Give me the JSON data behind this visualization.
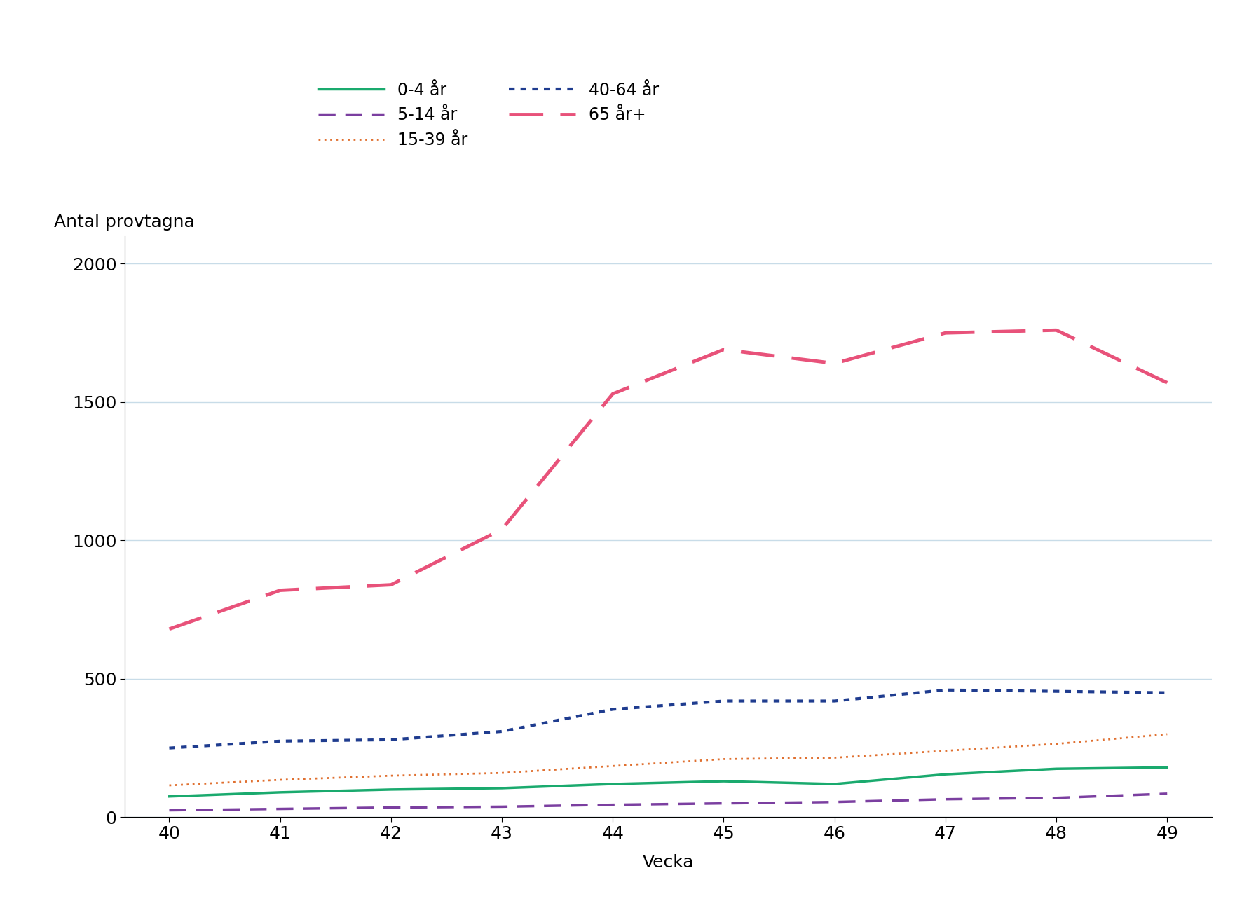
{
  "weeks": [
    40,
    41,
    42,
    43,
    44,
    45,
    46,
    47,
    48,
    49
  ],
  "series_order": [
    "0-4 år",
    "5-14 år",
    "15-39 år",
    "40-64 år",
    "65 år+"
  ],
  "series": {
    "0-4 år": {
      "values": [
        75,
        90,
        100,
        105,
        120,
        130,
        120,
        155,
        175,
        180
      ],
      "color": "#1aaa6e",
      "linestyle": "solid",
      "linewidth": 2.5,
      "dashes": null
    },
    "5-14 år": {
      "values": [
        25,
        30,
        35,
        38,
        45,
        50,
        55,
        65,
        70,
        85
      ],
      "color": "#7b3fa0",
      "linestyle": "dashed",
      "linewidth": 2.5,
      "dashes": [
        7,
        4
      ]
    },
    "15-39 år": {
      "values": [
        115,
        135,
        150,
        160,
        185,
        210,
        215,
        240,
        265,
        300
      ],
      "color": "#e07030",
      "linestyle": "dotted",
      "linewidth": 2.0,
      "dashes": [
        1,
        2
      ]
    },
    "40-64 år": {
      "values": [
        250,
        275,
        280,
        310,
        390,
        420,
        420,
        460,
        455,
        450
      ],
      "color": "#1f3c8f",
      "linestyle": "dotted",
      "linewidth": 3.0,
      "dashes": [
        2,
        2
      ]
    },
    "65 år+": {
      "values": [
        680,
        820,
        840,
        1040,
        1530,
        1690,
        1640,
        1750,
        1760,
        1570
      ],
      "color": "#e8527a",
      "linestyle": "dashed",
      "linewidth": 3.5,
      "dashes": [
        10,
        5
      ]
    }
  },
  "xlabel": "Vecka",
  "ylabel": "Antal provtagna",
  "ylim": [
    0,
    2100
  ],
  "yticks": [
    0,
    500,
    1000,
    1500,
    2000
  ],
  "xlim": [
    39.6,
    49.4
  ],
  "xticks": [
    40,
    41,
    42,
    43,
    44,
    45,
    46,
    47,
    48,
    49
  ],
  "grid_color": "#c8dce8",
  "background_color": "#ffffff",
  "label_fontsize": 18,
  "tick_fontsize": 18,
  "legend_fontsize": 17
}
